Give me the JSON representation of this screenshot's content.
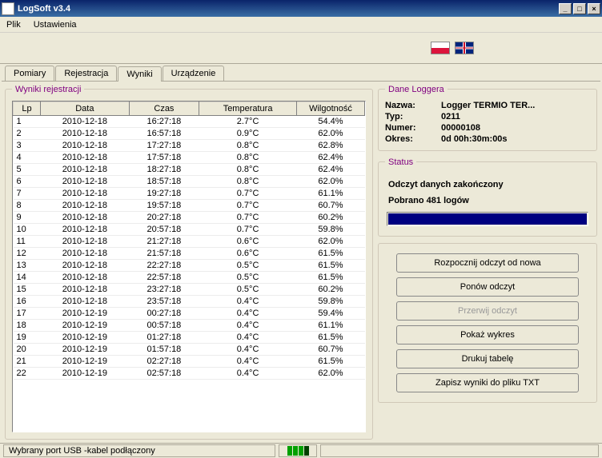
{
  "window": {
    "title": "LogSoft v3.4"
  },
  "menu": {
    "file": "Plik",
    "settings": "Ustawienia"
  },
  "tabs": {
    "pomiary": "Pomiary",
    "rejestracja": "Rejestracja",
    "wyniki": "Wyniki",
    "urzadzenie": "Urządzenie"
  },
  "results": {
    "legend": "Wyniki rejestracji",
    "columns": {
      "lp": "Lp",
      "data": "Data",
      "czas": "Czas",
      "temp": "Temperatura",
      "wilg": "Wilgotność"
    },
    "rows": [
      {
        "lp": "1",
        "data": "2010-12-18",
        "czas": "16:27:18",
        "temp": "2.7°C",
        "wilg": "54.4%"
      },
      {
        "lp": "2",
        "data": "2010-12-18",
        "czas": "16:57:18",
        "temp": "0.9°C",
        "wilg": "62.0%"
      },
      {
        "lp": "3",
        "data": "2010-12-18",
        "czas": "17:27:18",
        "temp": "0.8°C",
        "wilg": "62.8%"
      },
      {
        "lp": "4",
        "data": "2010-12-18",
        "czas": "17:57:18",
        "temp": "0.8°C",
        "wilg": "62.4%"
      },
      {
        "lp": "5",
        "data": "2010-12-18",
        "czas": "18:27:18",
        "temp": "0.8°C",
        "wilg": "62.4%"
      },
      {
        "lp": "6",
        "data": "2010-12-18",
        "czas": "18:57:18",
        "temp": "0.8°C",
        "wilg": "62.0%"
      },
      {
        "lp": "7",
        "data": "2010-12-18",
        "czas": "19:27:18",
        "temp": "0.7°C",
        "wilg": "61.1%"
      },
      {
        "lp": "8",
        "data": "2010-12-18",
        "czas": "19:57:18",
        "temp": "0.7°C",
        "wilg": "60.7%"
      },
      {
        "lp": "9",
        "data": "2010-12-18",
        "czas": "20:27:18",
        "temp": "0.7°C",
        "wilg": "60.2%"
      },
      {
        "lp": "10",
        "data": "2010-12-18",
        "czas": "20:57:18",
        "temp": "0.7°C",
        "wilg": "59.8%"
      },
      {
        "lp": "11",
        "data": "2010-12-18",
        "czas": "21:27:18",
        "temp": "0.6°C",
        "wilg": "62.0%"
      },
      {
        "lp": "12",
        "data": "2010-12-18",
        "czas": "21:57:18",
        "temp": "0.6°C",
        "wilg": "61.5%"
      },
      {
        "lp": "13",
        "data": "2010-12-18",
        "czas": "22:27:18",
        "temp": "0.5°C",
        "wilg": "61.5%"
      },
      {
        "lp": "14",
        "data": "2010-12-18",
        "czas": "22:57:18",
        "temp": "0.5°C",
        "wilg": "61.5%"
      },
      {
        "lp": "15",
        "data": "2010-12-18",
        "czas": "23:27:18",
        "temp": "0.5°C",
        "wilg": "60.2%"
      },
      {
        "lp": "16",
        "data": "2010-12-18",
        "czas": "23:57:18",
        "temp": "0.4°C",
        "wilg": "59.8%"
      },
      {
        "lp": "17",
        "data": "2010-12-19",
        "czas": "00:27:18",
        "temp": "0.4°C",
        "wilg": "59.4%"
      },
      {
        "lp": "18",
        "data": "2010-12-19",
        "czas": "00:57:18",
        "temp": "0.4°C",
        "wilg": "61.1%"
      },
      {
        "lp": "19",
        "data": "2010-12-19",
        "czas": "01:27:18",
        "temp": "0.4°C",
        "wilg": "61.5%"
      },
      {
        "lp": "20",
        "data": "2010-12-19",
        "czas": "01:57:18",
        "temp": "0.4°C",
        "wilg": "60.7%"
      },
      {
        "lp": "21",
        "data": "2010-12-19",
        "czas": "02:27:18",
        "temp": "0.4°C",
        "wilg": "61.5%"
      },
      {
        "lp": "22",
        "data": "2010-12-19",
        "czas": "02:57:18",
        "temp": "0.4°C",
        "wilg": "62.0%"
      }
    ]
  },
  "logger": {
    "legend": "Dane Loggera",
    "name_label": "Nazwa:",
    "name_val": "Logger TERMIO  TER...",
    "type_label": "Typ:",
    "type_val": "0211",
    "num_label": "Numer:",
    "num_val": "00000108",
    "period_label": "Okres:",
    "period_val": "0d  00h:30m:00s"
  },
  "status": {
    "legend": "Status",
    "line1": "Odczyt danych zakończony",
    "line2": "Pobrano 481 logów"
  },
  "buttons": {
    "restart": "Rozpocznij odczyt od nowa",
    "retry": "Ponów odczyt",
    "abort": "Przerwij odczyt",
    "chart": "Pokaż wykres",
    "print": "Drukuj tabelę",
    "save": "Zapisz wyniki do pliku TXT"
  },
  "statusbar": {
    "port": "Wybrany port USB  -kabel podłączony"
  }
}
